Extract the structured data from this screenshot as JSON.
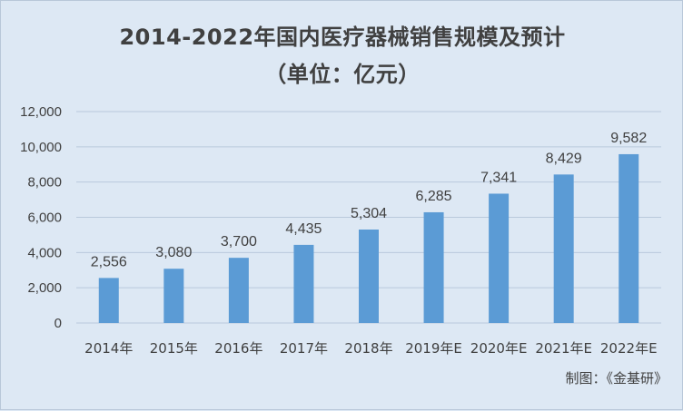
{
  "chart_data": {
    "type": "bar",
    "title": "2014-2022年国内医疗器械销售规模及预计",
    "subtitle": "（单位：亿元）",
    "categories": [
      "2014年",
      "2015年",
      "2016年",
      "2017年",
      "2018年",
      "2019年E",
      "2020年E",
      "2021年E",
      "2022年E"
    ],
    "values": [
      2556,
      3080,
      3700,
      4435,
      5304,
      6285,
      7341,
      8429,
      9582
    ],
    "value_labels": [
      "2,556",
      "3,080",
      "3,700",
      "4,435",
      "5,304",
      "6,285",
      "7,341",
      "8,429",
      "9,582"
    ],
    "ylim": [
      0,
      12000
    ],
    "yticks": [
      0,
      2000,
      4000,
      6000,
      8000,
      10000,
      12000
    ],
    "ytick_labels": [
      "0",
      "2,000",
      "4,000",
      "6,000",
      "8,000",
      "10,000",
      "12,000"
    ],
    "grid": true,
    "colors": {
      "bar": "#5b9bd5",
      "grid": "#b9c9dc",
      "text": "#404040",
      "background": "#dde8f4"
    }
  },
  "source_note": "制图：《金基研》"
}
